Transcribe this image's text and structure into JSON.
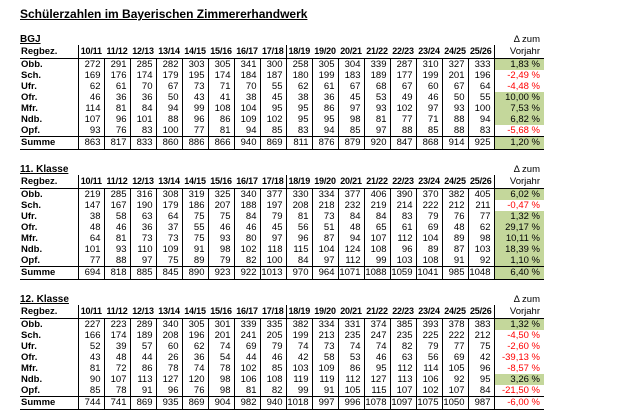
{
  "title": "Schülerzahlen im Bayerischen Zimmererhandwerk",
  "row_header": "Regbez.",
  "years": [
    "10/11",
    "11/12",
    "12/13",
    "13/14",
    "14/15",
    "15/16",
    "16/17",
    "17/18",
    "18/19",
    "19/20",
    "20/21",
    "21/22",
    "22/23",
    "23/24",
    "24/25",
    "25/26"
  ],
  "delta_header": {
    "line1": "Δ zum",
    "line2": "Vorjahr"
  },
  "colors": {
    "positive_bg": "#c4d79b",
    "negative_text": "#ff0000"
  },
  "tables": [
    {
      "label": "BGJ",
      "rows": [
        {
          "label": "Obb.",
          "values": [
            272,
            291,
            285,
            282,
            303,
            305,
            341,
            300,
            258,
            305,
            304,
            339,
            287,
            310,
            327,
            333
          ],
          "delta": "1,83 %",
          "positive": true
        },
        {
          "label": "Sch.",
          "values": [
            169,
            176,
            174,
            179,
            195,
            174,
            184,
            187,
            180,
            199,
            183,
            189,
            177,
            199,
            201,
            196
          ],
          "delta": "-2,49 %",
          "positive": false
        },
        {
          "label": "Ufr.",
          "values": [
            62,
            61,
            70,
            67,
            73,
            71,
            70,
            55,
            62,
            61,
            67,
            68,
            67,
            60,
            67,
            64
          ],
          "delta": "-4,48 %",
          "positive": false
        },
        {
          "label": "Ofr.",
          "values": [
            46,
            36,
            36,
            50,
            43,
            41,
            38,
            45,
            38,
            36,
            45,
            53,
            49,
            46,
            50,
            55
          ],
          "delta": "10,00 %",
          "positive": true
        },
        {
          "label": "Mfr.",
          "values": [
            114,
            81,
            84,
            94,
            99,
            108,
            104,
            95,
            95,
            86,
            97,
            93,
            102,
            97,
            93,
            100
          ],
          "delta": "7,53 %",
          "positive": true
        },
        {
          "label": "Ndb.",
          "values": [
            107,
            96,
            101,
            88,
            96,
            86,
            109,
            102,
            95,
            95,
            98,
            81,
            77,
            71,
            88,
            94
          ],
          "delta": "6,82 %",
          "positive": true
        },
        {
          "label": "Opf.",
          "values": [
            93,
            76,
            83,
            100,
            77,
            81,
            94,
            85,
            83,
            94,
            85,
            97,
            88,
            85,
            88,
            83
          ],
          "delta": "-5,68 %",
          "positive": false
        }
      ],
      "summe": {
        "label": "Summe",
        "values": [
          863,
          817,
          833,
          860,
          886,
          866,
          940,
          869,
          811,
          876,
          879,
          920,
          847,
          868,
          914,
          925
        ],
        "delta": "1,20 %",
        "positive": true
      }
    },
    {
      "label": "11. Klasse",
      "rows": [
        {
          "label": "Obb.",
          "values": [
            219,
            285,
            316,
            308,
            319,
            325,
            340,
            377,
            330,
            334,
            377,
            406,
            390,
            370,
            382,
            405
          ],
          "delta": "6,02 %",
          "positive": true
        },
        {
          "label": "Sch.",
          "values": [
            147,
            167,
            190,
            179,
            186,
            207,
            188,
            197,
            208,
            218,
            232,
            219,
            214,
            222,
            212,
            211
          ],
          "delta": "-0,47 %",
          "positive": false
        },
        {
          "label": "Ufr.",
          "values": [
            38,
            58,
            63,
            64,
            75,
            75,
            84,
            79,
            81,
            73,
            84,
            84,
            83,
            79,
            76,
            77
          ],
          "delta": "1,32 %",
          "positive": true
        },
        {
          "label": "Ofr.",
          "values": [
            48,
            46,
            36,
            37,
            55,
            46,
            46,
            45,
            56,
            51,
            48,
            65,
            61,
            69,
            48,
            62
          ],
          "delta": "29,17 %",
          "positive": true
        },
        {
          "label": "Mfr.",
          "values": [
            64,
            81,
            73,
            73,
            75,
            93,
            80,
            97,
            96,
            87,
            94,
            107,
            112,
            104,
            89,
            98
          ],
          "delta": "10,11 %",
          "positive": true
        },
        {
          "label": "Ndb.",
          "values": [
            101,
            93,
            110,
            109,
            91,
            98,
            102,
            118,
            115,
            104,
            124,
            108,
            96,
            89,
            87,
            103
          ],
          "delta": "18,39 %",
          "positive": true
        },
        {
          "label": "Opf.",
          "values": [
            77,
            88,
            97,
            75,
            89,
            79,
            82,
            100,
            84,
            97,
            112,
            99,
            103,
            108,
            91,
            92
          ],
          "delta": "1,10 %",
          "positive": true
        }
      ],
      "summe": {
        "label": "Summe",
        "values": [
          694,
          818,
          885,
          845,
          890,
          923,
          922,
          1013,
          970,
          964,
          1071,
          1088,
          1059,
          1041,
          985,
          1048
        ],
        "delta": "6,40 %",
        "positive": true
      }
    },
    {
      "label": "12. Klasse",
      "rows": [
        {
          "label": "Obb.",
          "values": [
            227,
            223,
            289,
            340,
            305,
            301,
            339,
            335,
            382,
            334,
            331,
            374,
            385,
            393,
            378,
            383
          ],
          "delta": "1,32 %",
          "positive": true
        },
        {
          "label": "Sch.",
          "values": [
            166,
            174,
            189,
            208,
            196,
            201,
            241,
            205,
            199,
            213,
            235,
            247,
            235,
            225,
            222,
            212
          ],
          "delta": "-4,50 %",
          "positive": false
        },
        {
          "label": "Ufr.",
          "values": [
            52,
            39,
            57,
            60,
            62,
            74,
            69,
            79,
            74,
            73,
            74,
            74,
            82,
            79,
            77,
            75
          ],
          "delta": "-2,60 %",
          "positive": false
        },
        {
          "label": "Ofr.",
          "values": [
            43,
            48,
            44,
            26,
            36,
            54,
            44,
            46,
            42,
            58,
            53,
            46,
            63,
            56,
            69,
            42
          ],
          "delta": "-39,13 %",
          "positive": false
        },
        {
          "label": "Mfr.",
          "values": [
            81,
            72,
            86,
            78,
            74,
            78,
            102,
            85,
            103,
            109,
            86,
            95,
            112,
            114,
            105,
            96
          ],
          "delta": "-8,57 %",
          "positive": false
        },
        {
          "label": "Ndb.",
          "values": [
            90,
            107,
            113,
            127,
            120,
            98,
            106,
            108,
            119,
            119,
            112,
            127,
            113,
            106,
            92,
            95
          ],
          "delta": "3,26 %",
          "positive": true
        },
        {
          "label": "Opf.",
          "values": [
            85,
            78,
            91,
            96,
            76,
            98,
            81,
            82,
            99,
            91,
            105,
            115,
            107,
            102,
            107,
            84
          ],
          "delta": "-21,50 %",
          "positive": false
        }
      ],
      "summe": {
        "label": "Summe",
        "values": [
          744,
          741,
          869,
          935,
          869,
          904,
          982,
          940,
          1018,
          997,
          996,
          1078,
          1097,
          1075,
          1050,
          987
        ],
        "delta": "-6,00 %",
        "positive": false
      }
    }
  ]
}
